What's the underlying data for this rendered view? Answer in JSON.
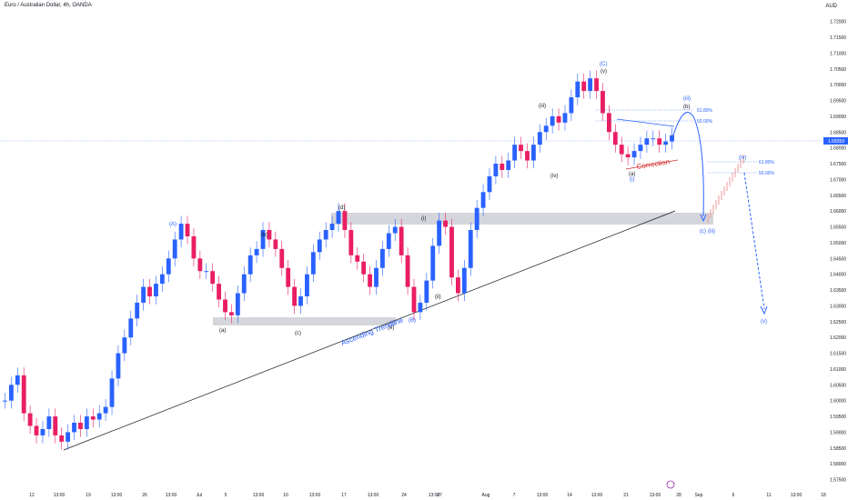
{
  "header": {
    "title": "Euro / Australian Dollar, 4h, OANDA",
    "currency": "AUD"
  },
  "chart_data": {
    "type": "candlestick",
    "instrument": "Euro / Australian Dollar",
    "timeframe": "4h",
    "broker": "OANDA",
    "y_ticks": [
      "1.72000",
      "1.71500",
      "1.71000",
      "1.70500",
      "1.70000",
      "1.69500",
      "1.69000",
      "1.68500",
      "1.68000",
      "1.67500",
      "1.67000",
      "1.66500",
      "1.66000",
      "1.65500",
      "1.65000",
      "1.64500",
      "1.64000",
      "1.63500",
      "1.63000",
      "1.62500",
      "1.62000",
      "1.61500",
      "1.61000",
      "1.60500",
      "1.60000",
      "1.59500",
      "1.59000",
      "1.58500",
      "1.58000",
      "1.57500"
    ],
    "x_ticks": [
      "12",
      "13:00",
      "19",
      "13:00",
      "26",
      "13:00",
      "Jul",
      "5",
      "13:00",
      "10",
      "13:00",
      "17",
      "13:00",
      "24",
      "13:00",
      "27",
      "Aug",
      "7",
      "13:00",
      "14",
      "13:00",
      "21",
      "13:00",
      "28",
      "Sep",
      "6",
      "11",
      "13:00",
      "18"
    ],
    "ylim": [
      1.572,
      1.7245
    ],
    "current_price": "1.68359",
    "up_color": "#2962ff",
    "down_color": "#e91e63",
    "candles_close": [
      1.6,
      1.605,
      1.608,
      1.596,
      1.592,
      1.589,
      1.591,
      1.595,
      1.589,
      1.587,
      1.59,
      1.593,
      1.591,
      1.595,
      1.594,
      1.596,
      1.598,
      1.607,
      1.615,
      1.62,
      1.626,
      1.631,
      1.636,
      1.633,
      1.637,
      1.64,
      1.645,
      1.651,
      1.656,
      1.652,
      1.645,
      1.641,
      1.641,
      1.637,
      1.632,
      1.628,
      1.627,
      1.634,
      1.64,
      1.646,
      1.648,
      1.654,
      1.651,
      1.648,
      1.642,
      1.636,
      1.63,
      1.633,
      1.64,
      1.647,
      1.651,
      1.654,
      1.656,
      1.66,
      1.654,
      1.646,
      1.644,
      1.64,
      1.636,
      1.642,
      1.648,
      1.653,
      1.655,
      1.646,
      1.636,
      1.628,
      1.631,
      1.638,
      1.649,
      1.657,
      1.655,
      1.639,
      1.634,
      1.642,
      1.654,
      1.661,
      1.666,
      1.671,
      1.675,
      1.673,
      1.676,
      1.681,
      1.679,
      1.676,
      1.681,
      1.685,
      1.687,
      1.69,
      1.688,
      1.691,
      1.696,
      1.701,
      1.698,
      1.702,
      1.698,
      1.691,
      1.685,
      1.681,
      1.678,
      1.677,
      1.679,
      1.681,
      1.683,
      1.683,
      1.681,
      1.682,
      1.684
    ]
  },
  "annotations": {
    "wave_labels": {
      "A": "(A)",
      "B": "(B)",
      "C": "(C)",
      "a1": "(a)",
      "b1": "(b)",
      "c1": "(c)",
      "d1": "(d)",
      "e1": "(e)",
      "i1": "(i)",
      "ii1": "(ii)",
      "iii1": "(iii)",
      "iv1": "(iv)",
      "v1": "(v)",
      "a2": "(a)",
      "b2": "(b)",
      "c2": "(c)",
      "i2": "(i)",
      "ii2": "(ii)",
      "iii2": "(iii)",
      "iv2": "(iv)",
      "v2": "(v)"
    },
    "fib_618_upper": "61.80%",
    "fib_50_upper": "50.00%",
    "fib_618_lower": "61.80%",
    "fib_50_lower": "50.00%",
    "trendline_label": "Ascending Trendline",
    "correction_label": "Correction"
  }
}
